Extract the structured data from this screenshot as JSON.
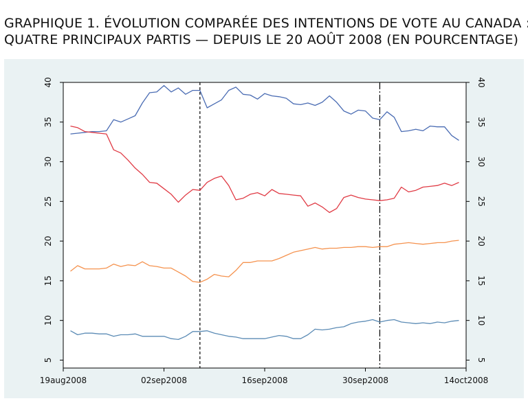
{
  "title": {
    "line1": "GRAPHIQUE 1. ÉVOLUTION COMPARÉE DES INTENTIONS DE VOTE AU CANADA :",
    "line2": "QUATRE PRINCIPAUX PARTIS — DEPUIS LE 20 AOÛT 2008 (EN POURCENTAGE)"
  },
  "chart_data": {
    "type": "line",
    "title": "GRAPHIQUE 1. ÉVOLUTION COMPARÉE DES INTENTIONS DE VOTE AU CANADA : QUATRE PRINCIPAUX PARTIS — DEPUIS LE 20 AOÛT 2008 (EN POURCENTAGE)",
    "xlabel": "",
    "ylabel": "",
    "x_start": "2008-08-20",
    "x_end": "2008-10-13",
    "xlim": [
      "2008-08-19",
      "2008-10-14"
    ],
    "ylim": [
      4,
      40
    ],
    "grid": false,
    "x_ticks": [
      {
        "date": "2008-08-19",
        "label": "19aug2008"
      },
      {
        "date": "2008-09-02",
        "label": "02sep2008"
      },
      {
        "date": "2008-09-16",
        "label": "16sep2008"
      },
      {
        "date": "2008-09-30",
        "label": "30sep2008"
      },
      {
        "date": "2008-10-14",
        "label": "14oct2008"
      }
    ],
    "y_ticks": [
      5,
      10,
      15,
      20,
      25,
      30,
      35,
      40
    ],
    "vlines": [
      {
        "date": "2008-09-07",
        "style": "dash"
      },
      {
        "date": "2008-10-02",
        "style": "dashdot"
      }
    ],
    "series": [
      {
        "color": "#4a6cb3",
        "values": [
          33.5,
          33.6,
          33.7,
          33.8,
          33.8,
          33.9,
          35.3,
          35.0,
          35.4,
          35.8,
          37.4,
          38.7,
          38.8,
          39.6,
          38.8,
          39.3,
          38.5,
          39.0,
          39.0,
          36.8,
          37.3,
          37.8,
          39.0,
          39.4,
          38.5,
          38.4,
          37.9,
          38.6,
          38.3,
          38.2,
          38.0,
          37.3,
          37.2,
          37.4,
          37.1,
          37.5,
          38.3,
          37.5,
          36.4,
          36.0,
          36.5,
          36.4,
          35.5,
          35.3,
          36.3,
          35.6,
          33.8,
          33.9,
          34.1,
          33.9,
          34.5,
          34.4,
          34.4,
          33.3,
          32.7
        ]
      },
      {
        "color": "#e03a44",
        "values": [
          34.5,
          34.3,
          33.8,
          33.7,
          33.6,
          33.5,
          31.5,
          31.1,
          30.2,
          29.2,
          28.4,
          27.4,
          27.3,
          26.6,
          25.9,
          24.9,
          25.8,
          26.5,
          26.4,
          27.4,
          27.9,
          28.2,
          27.0,
          25.2,
          25.4,
          25.9,
          26.1,
          25.7,
          26.5,
          26.0,
          25.9,
          25.8,
          25.7,
          24.4,
          24.8,
          24.3,
          23.6,
          24.1,
          25.5,
          25.8,
          25.5,
          25.3,
          25.2,
          25.1,
          25.2,
          25.4,
          26.8,
          26.2,
          26.4,
          26.8,
          26.9,
          27.0,
          27.3,
          27.0,
          27.4
        ]
      },
      {
        "color": "#f5924e",
        "values": [
          16.2,
          16.9,
          16.5,
          16.5,
          16.5,
          16.6,
          17.1,
          16.8,
          17.0,
          16.9,
          17.4,
          16.9,
          16.8,
          16.6,
          16.6,
          16.1,
          15.6,
          14.9,
          14.8,
          15.2,
          15.8,
          15.6,
          15.5,
          16.3,
          17.3,
          17.3,
          17.5,
          17.5,
          17.5,
          17.8,
          18.2,
          18.6,
          18.8,
          19.0,
          19.2,
          19.0,
          19.1,
          19.1,
          19.2,
          19.2,
          19.3,
          19.3,
          19.2,
          19.3,
          19.3,
          19.6,
          19.7,
          19.8,
          19.7,
          19.6,
          19.7,
          19.8,
          19.8,
          20.0,
          20.1
        ]
      },
      {
        "color": "#5b8bb5",
        "values": [
          8.7,
          8.2,
          8.4,
          8.4,
          8.3,
          8.3,
          8.0,
          8.2,
          8.2,
          8.3,
          8.0,
          8.0,
          8.0,
          8.0,
          7.7,
          7.6,
          8.0,
          8.6,
          8.6,
          8.7,
          8.4,
          8.2,
          8.0,
          7.9,
          7.7,
          7.7,
          7.7,
          7.7,
          7.9,
          8.1,
          8.0,
          7.7,
          7.7,
          8.2,
          8.9,
          8.8,
          8.9,
          9.1,
          9.2,
          9.6,
          9.8,
          9.9,
          10.1,
          9.8,
          10.0,
          10.1,
          9.8,
          9.7,
          9.6,
          9.7,
          9.6,
          9.8,
          9.7,
          9.9,
          10.0
        ]
      }
    ]
  }
}
